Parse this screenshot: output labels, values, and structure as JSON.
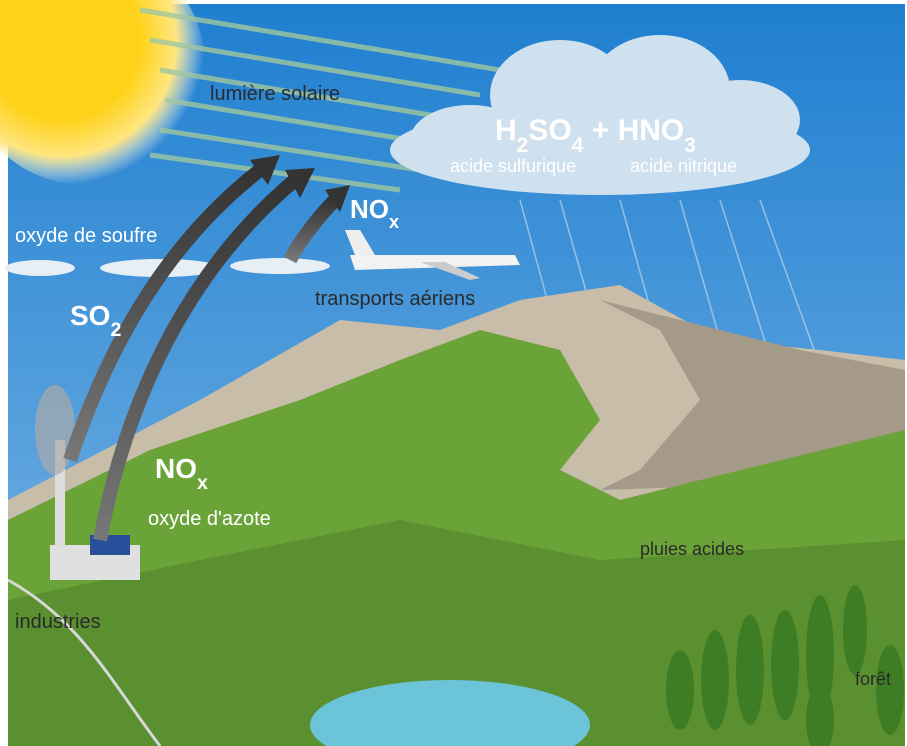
{
  "labels": {
    "sunlight": "lumière solaire",
    "acids": "H2SO4 + HNO3",
    "sulfuric": "acide sulfurique",
    "nitric": "acide nitrique",
    "nox_air": "NOx",
    "sulfur_oxide": "oxyde de soufre",
    "air_transport": "transports aériens",
    "so2": "SO2",
    "nox_ground": "NOx",
    "nitrogen_oxide": "oxyde d'azote",
    "acid_rain": "pluies acides",
    "industries": "industries",
    "forest": "forêt"
  }
}
